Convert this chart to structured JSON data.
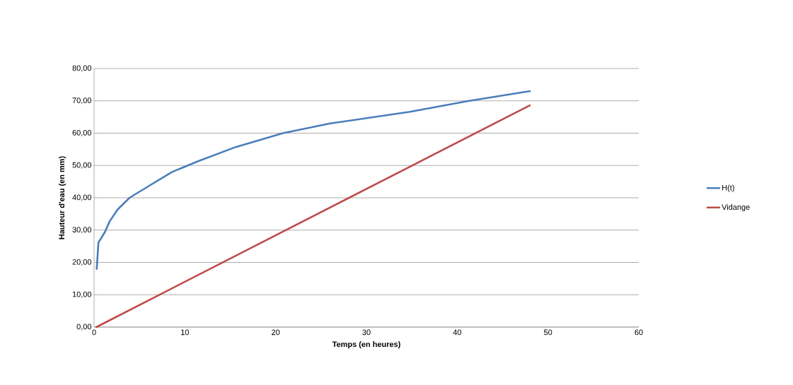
{
  "chart_data": {
    "type": "line",
    "xlabel": "Temps (en heures)",
    "ylabel": "Hauteur d'eau (en mm)",
    "xlim": [
      0,
      60
    ],
    "xticks": [
      0,
      10,
      20,
      30,
      40,
      50,
      60
    ],
    "ylim": [
      0,
      80
    ],
    "yticks": [
      {
        "value": 0,
        "label": "0,00"
      },
      {
        "value": 10,
        "label": "10,00"
      },
      {
        "value": 20,
        "label": "20,00"
      },
      {
        "value": 30,
        "label": "30,00"
      },
      {
        "value": 40,
        "label": "40,00"
      },
      {
        "value": 50,
        "label": "50,00"
      },
      {
        "value": 60,
        "label": "60,00"
      },
      {
        "value": 70,
        "label": "70,00"
      },
      {
        "value": 80,
        "label": "80,00"
      }
    ],
    "grid": "y",
    "legend": "right",
    "marker": "none",
    "line_style": "solid",
    "series": [
      {
        "name": "H(t)",
        "color": "#4a7ebb",
        "x": [
          0.29,
          0.48,
          0.8,
          1.19,
          1.71,
          2.6,
          3.9,
          6.0,
          8.6,
          11.45,
          15.6,
          20.8,
          26.0,
          34.8,
          41.1,
          48.0
        ],
        "values": [
          18.0,
          26.2,
          27.6,
          29.4,
          32.7,
          36.4,
          40.0,
          43.6,
          48.0,
          51.3,
          55.7,
          60.0,
          63.0,
          66.6,
          69.9,
          73.0
        ]
      },
      {
        "name": "Vidange",
        "color": "#be4b48",
        "x": [
          0.25,
          48.0
        ],
        "values": [
          0,
          68.6
        ]
      }
    ]
  }
}
